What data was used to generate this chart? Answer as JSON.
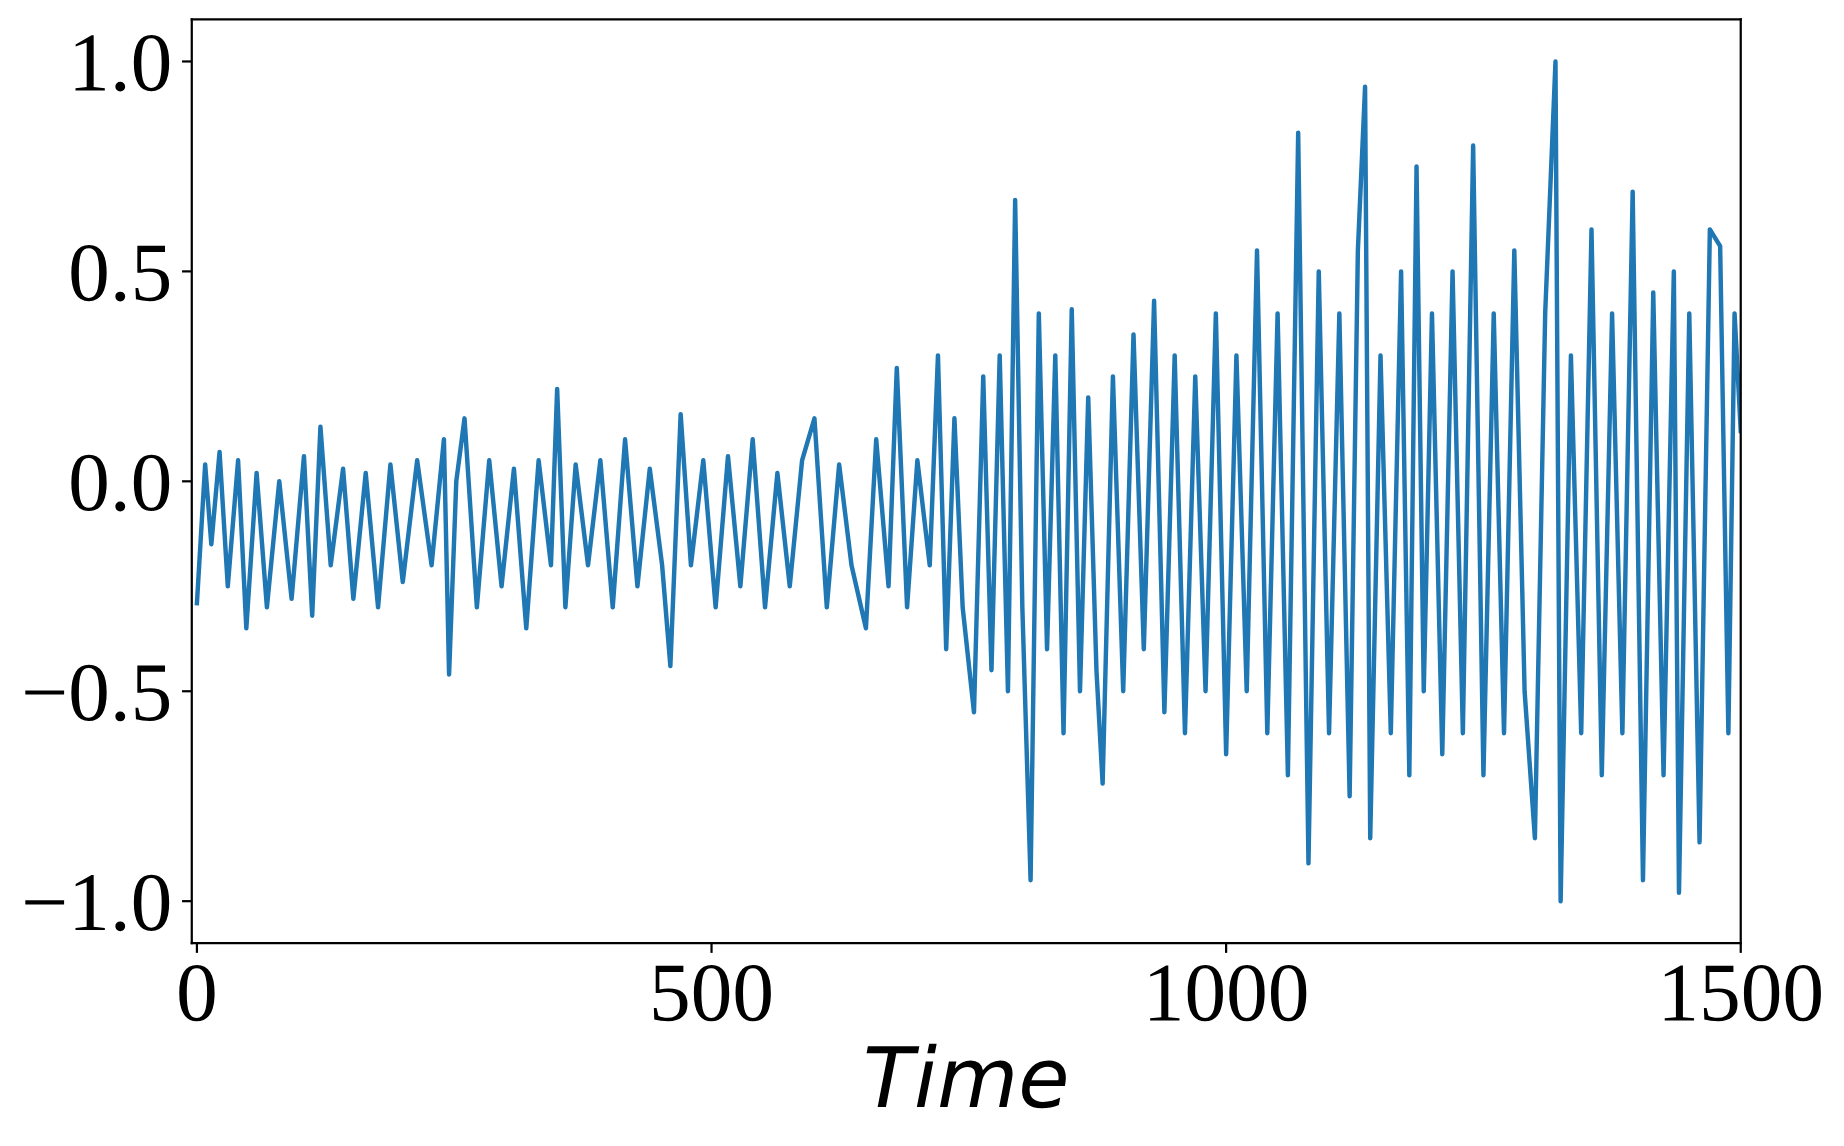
{
  "chart_data": {
    "type": "line",
    "xlabel": "Time",
    "xlim": [
      -5,
      1500
    ],
    "ylim": [
      -1.1,
      1.1
    ],
    "xticks": [
      0,
      500,
      1000,
      1500
    ],
    "yticks": [
      {
        "value": -1.0,
        "label": "−1.0"
      },
      {
        "value": -0.5,
        "label": "−0.5"
      },
      {
        "value": 0.0,
        "label": "0.0"
      },
      {
        "value": 0.5,
        "label": "0.5"
      },
      {
        "value": 1.0,
        "label": "1.0"
      }
    ],
    "grid": false,
    "legend": false,
    "series": [
      {
        "color": "#1f77b4",
        "x": [
          0,
          8,
          14,
          22,
          30,
          40,
          48,
          58,
          68,
          80,
          92,
          104,
          112,
          120,
          130,
          142,
          152,
          164,
          176,
          188,
          200,
          214,
          228,
          240,
          245,
          252,
          260,
          272,
          284,
          296,
          308,
          320,
          332,
          344,
          350,
          358,
          368,
          380,
          392,
          404,
          416,
          428,
          440,
          452,
          460,
          470,
          480,
          492,
          504,
          516,
          528,
          540,
          552,
          564,
          576,
          588,
          600,
          612,
          624,
          636,
          650,
          660,
          672,
          680,
          690,
          700,
          712,
          720,
          728,
          736,
          744,
          755,
          764,
          772,
          780,
          788,
          795,
          802,
          810,
          818,
          826,
          834,
          842,
          850,
          858,
          866,
          874,
          880,
          890,
          900,
          910,
          920,
          930,
          940,
          950,
          960,
          970,
          980,
          990,
          1000,
          1010,
          1020,
          1030,
          1040,
          1050,
          1060,
          1070,
          1080,
          1090,
          1100,
          1110,
          1120,
          1128,
          1135,
          1140,
          1150,
          1160,
          1170,
          1178,
          1185,
          1192,
          1200,
          1210,
          1220,
          1230,
          1240,
          1250,
          1260,
          1270,
          1280,
          1290,
          1300,
          1310,
          1320,
          1325,
          1335,
          1345,
          1355,
          1365,
          1375,
          1385,
          1395,
          1405,
          1415,
          1425,
          1435,
          1440,
          1450,
          1460,
          1470,
          1480,
          1488,
          1494,
          1500
        ],
        "values": [
          -0.29,
          0.04,
          -0.15,
          0.07,
          -0.25,
          0.05,
          -0.35,
          0.02,
          -0.3,
          0.0,
          -0.28,
          0.06,
          -0.32,
          0.13,
          -0.2,
          0.03,
          -0.28,
          0.02,
          -0.3,
          0.04,
          -0.24,
          0.05,
          -0.2,
          0.1,
          -0.46,
          0.0,
          0.15,
          -0.3,
          0.05,
          -0.25,
          0.03,
          -0.35,
          0.05,
          -0.2,
          0.22,
          -0.3,
          0.04,
          -0.2,
          0.05,
          -0.3,
          0.1,
          -0.25,
          0.03,
          -0.2,
          -0.44,
          0.16,
          -0.2,
          0.05,
          -0.3,
          0.06,
          -0.25,
          0.1,
          -0.3,
          0.02,
          -0.25,
          0.05,
          0.15,
          -0.3,
          0.04,
          -0.2,
          -0.35,
          0.1,
          -0.25,
          0.27,
          -0.3,
          0.05,
          -0.2,
          0.3,
          -0.4,
          0.15,
          -0.3,
          -0.55,
          0.25,
          -0.45,
          0.3,
          -0.5,
          0.67,
          -0.3,
          -0.95,
          0.4,
          -0.4,
          0.3,
          -0.6,
          0.41,
          -0.5,
          0.2,
          -0.45,
          -0.72,
          0.25,
          -0.5,
          0.35,
          -0.4,
          0.43,
          -0.55,
          0.3,
          -0.6,
          0.25,
          -0.5,
          0.4,
          -0.65,
          0.3,
          -0.5,
          0.55,
          -0.6,
          0.4,
          -0.7,
          0.83,
          -0.91,
          0.5,
          -0.6,
          0.4,
          -0.75,
          0.55,
          0.94,
          -0.85,
          0.3,
          -0.6,
          0.5,
          -0.7,
          0.75,
          -0.5,
          0.4,
          -0.65,
          0.5,
          -0.6,
          0.8,
          -0.7,
          0.4,
          -0.6,
          0.55,
          -0.5,
          -0.85,
          0.4,
          1.0,
          -1.0,
          0.3,
          -0.6,
          0.6,
          -0.7,
          0.4,
          -0.6,
          0.69,
          -0.95,
          0.45,
          -0.7,
          0.5,
          -0.98,
          0.4,
          -0.86,
          0.6,
          0.56,
          -0.6,
          0.4,
          0.12
        ]
      }
    ]
  }
}
